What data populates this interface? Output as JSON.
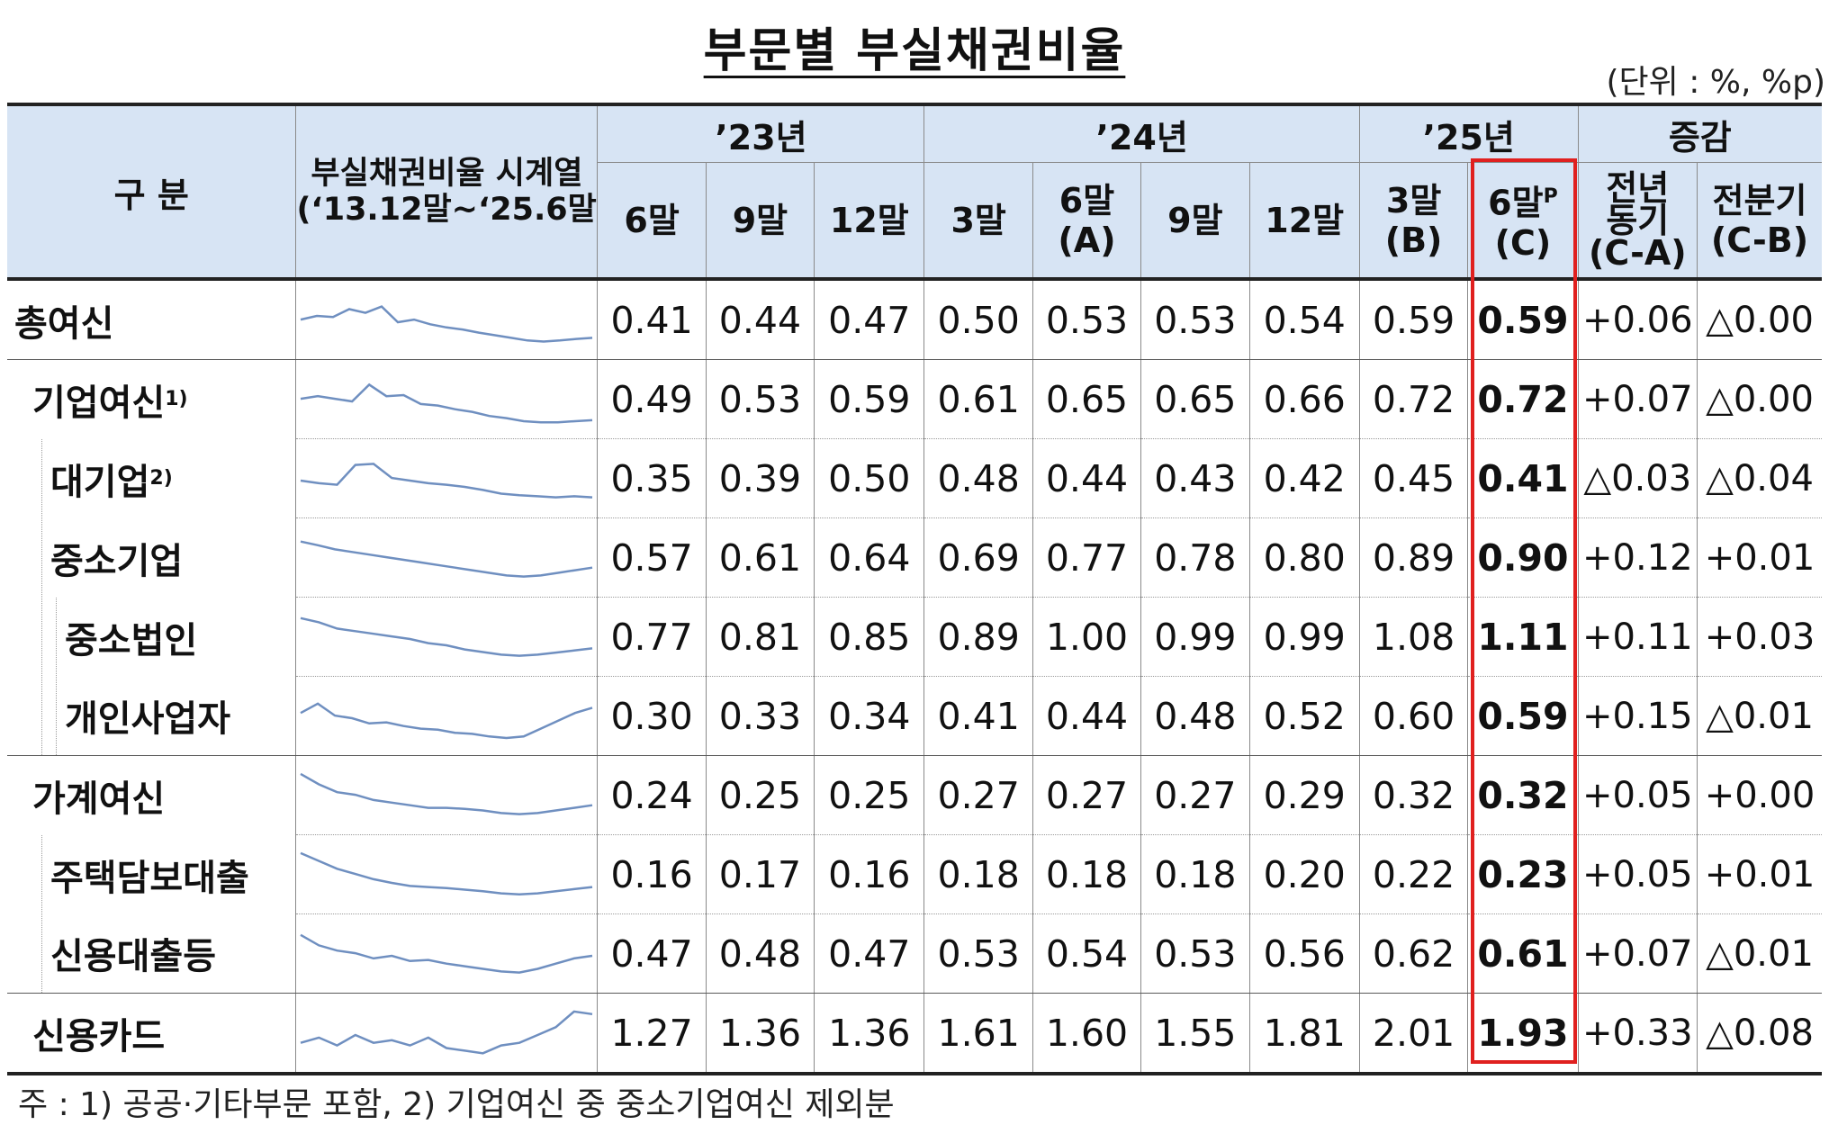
{
  "title": "부문별 부실채권비율",
  "unit": "(단위 : %, %p)",
  "header": {
    "division": "구 분",
    "series_label_line1": "부실채권비율 시계열",
    "series_label_line2": "(‘13.12말~‘25.6말)",
    "year_23": "’23년",
    "year_24": "’24년",
    "year_25": "’25년",
    "change": "증감",
    "cols": {
      "c23_6": "6말",
      "c23_9": "9말",
      "c23_12": "12말",
      "c24_3": "3말",
      "c24_6": "6말",
      "c24_6_tag": "(A)",
      "c24_9": "9말",
      "c24_12": "12말",
      "c25_3": "3말",
      "c25_3_tag": "(B)",
      "c25_6": "6말",
      "c25_6_sup": "P",
      "c25_6_tag": "(C)",
      "yoy_1": "전년",
      "yoy_2": "동기",
      "yoy_3": "(C-A)",
      "qoq_1": "전분기",
      "qoq_2": "(C-B)"
    }
  },
  "rows": [
    {
      "label": "총여신",
      "sup": "",
      "v": [
        "0.41",
        "0.44",
        "0.47",
        "0.50",
        "0.53",
        "0.53",
        "0.54",
        "0.59",
        "0.59"
      ],
      "yoy": "+0.06",
      "qoq": "△0.00"
    },
    {
      "label": "기업여신",
      "sup": "1)",
      "v": [
        "0.49",
        "0.53",
        "0.59",
        "0.61",
        "0.65",
        "0.65",
        "0.66",
        "0.72",
        "0.72"
      ],
      "yoy": "+0.07",
      "qoq": "△0.00"
    },
    {
      "label": "대기업",
      "sup": "2)",
      "v": [
        "0.35",
        "0.39",
        "0.50",
        "0.48",
        "0.44",
        "0.43",
        "0.42",
        "0.45",
        "0.41"
      ],
      "yoy": "△0.03",
      "qoq": "△0.04"
    },
    {
      "label": "중소기업",
      "sup": "",
      "v": [
        "0.57",
        "0.61",
        "0.64",
        "0.69",
        "0.77",
        "0.78",
        "0.80",
        "0.89",
        "0.90"
      ],
      "yoy": "+0.12",
      "qoq": "+0.01"
    },
    {
      "label": "중소법인",
      "sup": "",
      "v": [
        "0.77",
        "0.81",
        "0.85",
        "0.89",
        "1.00",
        "0.99",
        "0.99",
        "1.08",
        "1.11"
      ],
      "yoy": "+0.11",
      "qoq": "+0.03"
    },
    {
      "label": "개인사업자",
      "sup": "",
      "v": [
        "0.30",
        "0.33",
        "0.34",
        "0.41",
        "0.44",
        "0.48",
        "0.52",
        "0.60",
        "0.59"
      ],
      "yoy": "+0.15",
      "qoq": "△0.01"
    },
    {
      "label": "가계여신",
      "sup": "",
      "v": [
        "0.24",
        "0.25",
        "0.25",
        "0.27",
        "0.27",
        "0.27",
        "0.29",
        "0.32",
        "0.32"
      ],
      "yoy": "+0.05",
      "qoq": "+0.00"
    },
    {
      "label": "주택담보대출",
      "sup": "",
      "v": [
        "0.16",
        "0.17",
        "0.16",
        "0.18",
        "0.18",
        "0.18",
        "0.20",
        "0.22",
        "0.23"
      ],
      "yoy": "+0.05",
      "qoq": "+0.01"
    },
    {
      "label": "신용대출등",
      "sup": "",
      "v": [
        "0.47",
        "0.48",
        "0.47",
        "0.53",
        "0.54",
        "0.53",
        "0.56",
        "0.62",
        "0.61"
      ],
      "yoy": "+0.07",
      "qoq": "△0.01"
    },
    {
      "label": "신용카드",
      "sup": "",
      "v": [
        "1.27",
        "1.36",
        "1.36",
        "1.61",
        "1.60",
        "1.55",
        "1.81",
        "2.01",
        "1.93"
      ],
      "yoy": "+0.33",
      "qoq": "△0.08"
    }
  ],
  "note": "주 : 1) 공공·기타부문 포함,  2) 기업여신 중 중소기업여신 제외분",
  "colors": {
    "header_bg": "#d7e4f4",
    "highlight": "#e0201f",
    "sparkline": "#6f8fc0"
  }
}
